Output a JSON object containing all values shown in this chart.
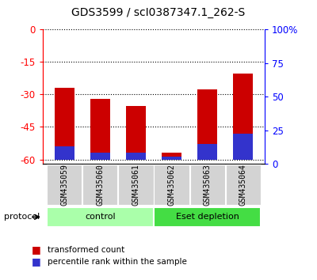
{
  "title": "GDS3599 / scI0387347.1_262-S",
  "samples": [
    "GSM435059",
    "GSM435060",
    "GSM435061",
    "GSM435062",
    "GSM435063",
    "GSM435064"
  ],
  "red_top": [
    -27.0,
    -32.0,
    -35.5,
    -57.0,
    -27.5,
    -20.5
  ],
  "blue_pct": [
    10,
    5,
    5,
    2,
    12,
    20
  ],
  "ylim_left": [
    -62,
    0
  ],
  "yticks_left": [
    0,
    -15,
    -30,
    -45,
    -60
  ],
  "bar_width": 0.55,
  "red_color": "#cc0000",
  "blue_color": "#3333cc",
  "group_info": [
    {
      "label": "control",
      "start": 0,
      "end": 3,
      "color": "#aaffaa"
    },
    {
      "label": "Eset depletion",
      "start": 3,
      "end": 6,
      "color": "#44dd44"
    }
  ],
  "legend_red": "transformed count",
  "legend_blue": "percentile rank within the sample",
  "protocol_label": "protocol",
  "label_bg": "#d3d3d3"
}
